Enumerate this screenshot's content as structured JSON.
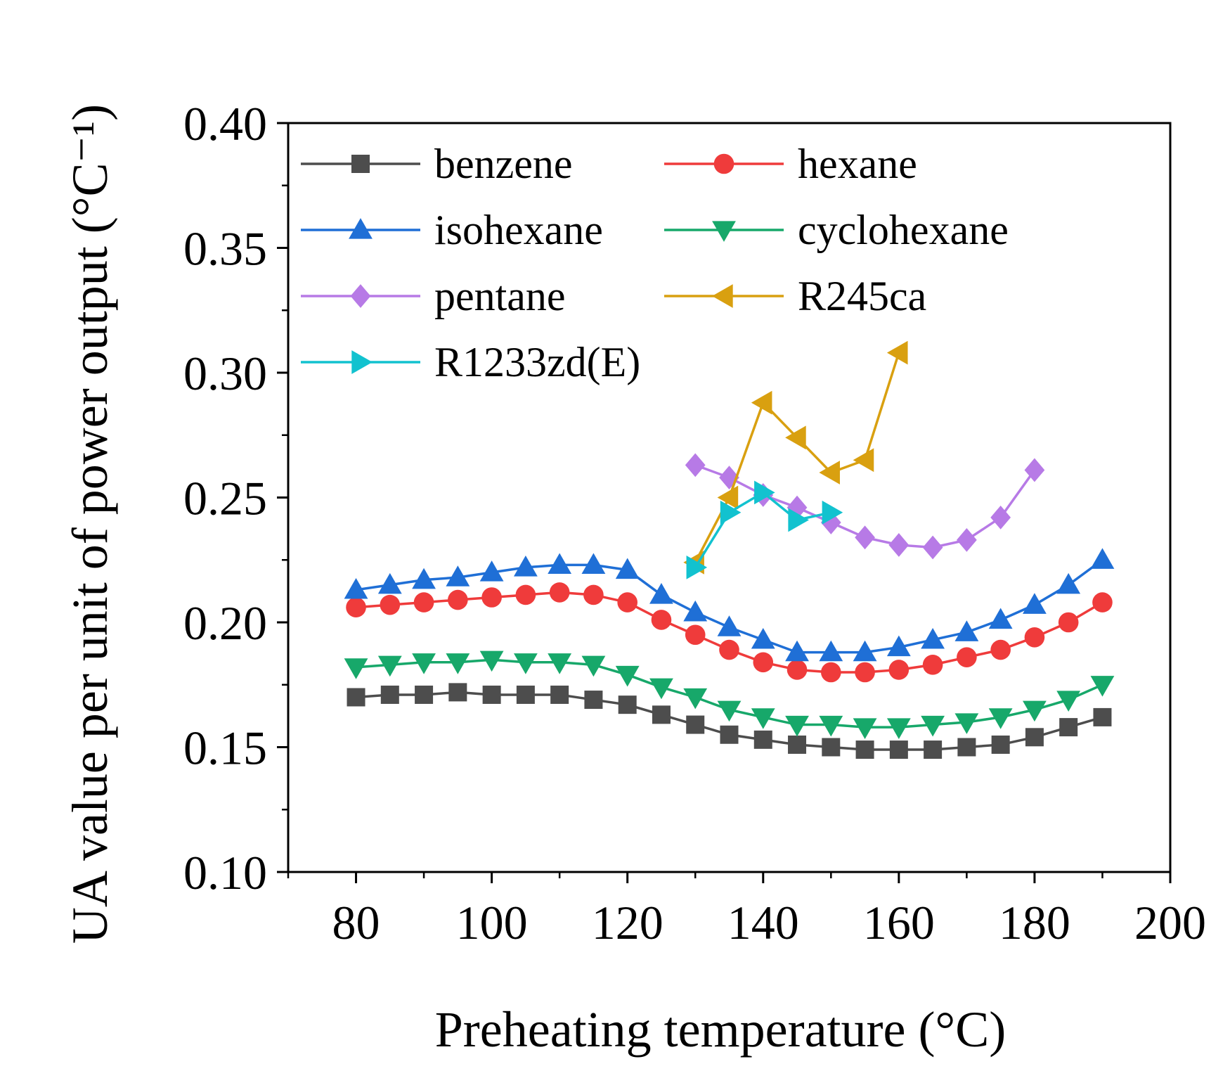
{
  "chart_data": {
    "type": "line",
    "title": "",
    "xlabel": "Preheating temperature  (°C)",
    "ylabel": "UA value per unit of power output (°C⁻¹)",
    "xlim": [
      70,
      200
    ],
    "ylim": [
      0.1,
      0.4
    ],
    "x_ticks": [
      "80",
      "100",
      "120",
      "140",
      "160",
      "180",
      "200"
    ],
    "y_ticks": [
      "0.10",
      "0.15",
      "0.20",
      "0.25",
      "0.30",
      "0.35",
      "0.40"
    ],
    "legend_position": "top-left",
    "series": [
      {
        "name": "benzene",
        "color": "#4d4d4d",
        "marker": "square",
        "x": [
          80,
          85,
          90,
          95,
          100,
          105,
          110,
          115,
          120,
          125,
          130,
          135,
          140,
          145,
          150,
          155,
          160,
          165,
          170,
          175,
          180,
          185,
          190
        ],
        "y": [
          0.17,
          0.171,
          0.171,
          0.172,
          0.171,
          0.171,
          0.171,
          0.169,
          0.167,
          0.163,
          0.159,
          0.155,
          0.153,
          0.151,
          0.15,
          0.149,
          0.149,
          0.149,
          0.15,
          0.151,
          0.154,
          0.158,
          0.162
        ]
      },
      {
        "name": "hexane",
        "color": "#ef3b3b",
        "marker": "circle",
        "x": [
          80,
          85,
          90,
          95,
          100,
          105,
          110,
          115,
          120,
          125,
          130,
          135,
          140,
          145,
          150,
          155,
          160,
          165,
          170,
          175,
          180,
          185,
          190
        ],
        "y": [
          0.206,
          0.207,
          0.208,
          0.209,
          0.21,
          0.211,
          0.212,
          0.211,
          0.208,
          0.201,
          0.195,
          0.189,
          0.184,
          0.181,
          0.18,
          0.18,
          0.181,
          0.183,
          0.186,
          0.189,
          0.194,
          0.2,
          0.208
        ]
      },
      {
        "name": "isohexane",
        "color": "#1f6fd6",
        "marker": "triangle-up",
        "x": [
          80,
          85,
          90,
          95,
          100,
          105,
          110,
          115,
          120,
          125,
          130,
          135,
          140,
          145,
          150,
          155,
          160,
          165,
          170,
          175,
          180,
          185,
          190
        ],
        "y": [
          0.213,
          0.215,
          0.217,
          0.218,
          0.22,
          0.222,
          0.223,
          0.223,
          0.221,
          0.211,
          0.204,
          0.198,
          0.193,
          0.188,
          0.188,
          0.188,
          0.19,
          0.193,
          0.196,
          0.201,
          0.207,
          0.215,
          0.225
        ]
      },
      {
        "name": "cyclohexane",
        "color": "#17a86a",
        "marker": "triangle-down",
        "x": [
          80,
          85,
          90,
          95,
          100,
          105,
          110,
          115,
          120,
          125,
          130,
          135,
          140,
          145,
          150,
          155,
          160,
          165,
          170,
          175,
          180,
          185,
          190
        ],
        "y": [
          0.182,
          0.183,
          0.184,
          0.184,
          0.185,
          0.184,
          0.184,
          0.183,
          0.179,
          0.174,
          0.17,
          0.165,
          0.162,
          0.159,
          0.159,
          0.158,
          0.158,
          0.159,
          0.16,
          0.162,
          0.165,
          0.169,
          0.175
        ]
      },
      {
        "name": "pentane",
        "color": "#b77ae6",
        "marker": "diamond",
        "x": [
          130,
          135,
          140,
          145,
          150,
          155,
          160,
          165,
          170,
          175,
          180
        ],
        "y": [
          0.263,
          0.258,
          0.251,
          0.246,
          0.24,
          0.234,
          0.231,
          0.23,
          0.233,
          0.242,
          0.261
        ]
      },
      {
        "name": "R245ca",
        "color": "#d9a010",
        "marker": "triangle-left",
        "x": [
          130,
          135,
          140,
          145,
          150,
          155,
          160
        ],
        "y": [
          0.224,
          0.25,
          0.288,
          0.274,
          0.26,
          0.265,
          0.308
        ]
      },
      {
        "name": "R1233zd(E)",
        "color": "#12c2cf",
        "marker": "triangle-right",
        "x": [
          130,
          135,
          140,
          145,
          150
        ],
        "y": [
          0.222,
          0.244,
          0.252,
          0.241,
          0.244
        ]
      }
    ]
  }
}
